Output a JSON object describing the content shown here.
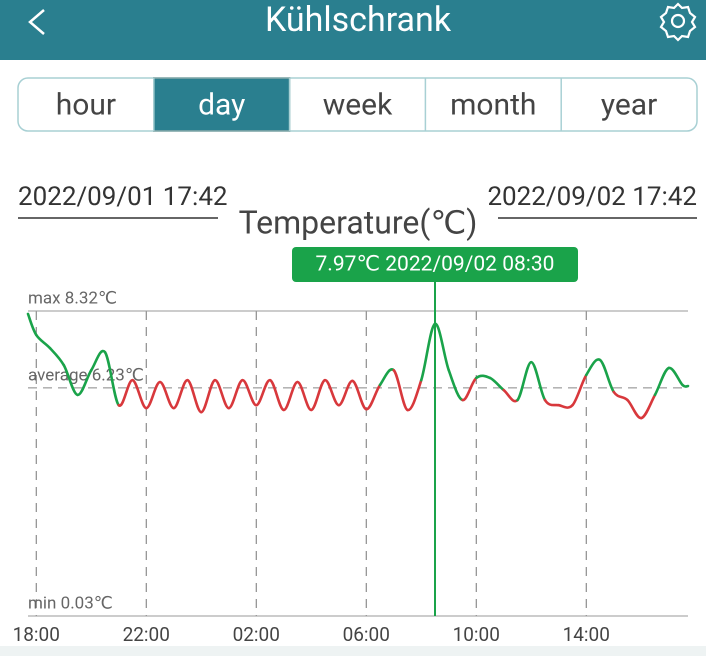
{
  "header": {
    "title": "Kühlschrank"
  },
  "tabs": {
    "items": [
      "hour",
      "day",
      "week",
      "month",
      "year"
    ],
    "selected": "day"
  },
  "chart_data": {
    "type": "line",
    "title": "Temperature(℃)",
    "xlim": [
      "2022/09/01 17:42",
      "2022/09/02 17:42"
    ],
    "xticks": [
      {
        "value": "2022/09/01 18:00",
        "label": "18:00"
      },
      {
        "value": "2022/09/01 22:00",
        "label": "22:00"
      },
      {
        "value": "2022/09/02 02:00",
        "label": "02:00"
      },
      {
        "value": "2022/09/02 06:00",
        "label": "06:00"
      },
      {
        "value": "2022/09/02 10:00",
        "label": "10:00"
      },
      {
        "value": "2022/09/02 14:00",
        "label": "14:00"
      }
    ],
    "ylim": [
      0.03,
      8.32
    ],
    "reference_lines": [
      {
        "label": "max 8.32℃",
        "value": 8.32
      },
      {
        "label": "average 6.23℃",
        "value": 6.23
      },
      {
        "label": "min 0.03℃",
        "value": 0.03
      }
    ],
    "color": "#1aa34a",
    "below_average_color": "#d8383c",
    "tooltip": {
      "text": "7.97℃ 2022/09/02 08:30",
      "x": "2022/09/02 08:30"
    },
    "x": [
      "2022/09/01 17:42",
      "2022/09/01 18:00",
      "2022/09/01 18:30",
      "2022/09/01 19:00",
      "2022/09/01 19:30",
      "2022/09/01 20:00",
      "2022/09/01 20:30",
      "2022/09/01 21:00",
      "2022/09/01 21:30",
      "2022/09/01 22:00",
      "2022/09/01 22:30",
      "2022/09/01 23:00",
      "2022/09/01 23:30",
      "2022/09/02 00:00",
      "2022/09/02 00:30",
      "2022/09/02 01:00",
      "2022/09/02 01:30",
      "2022/09/02 02:00",
      "2022/09/02 02:30",
      "2022/09/02 03:00",
      "2022/09/02 03:30",
      "2022/09/02 04:00",
      "2022/09/02 04:30",
      "2022/09/02 05:00",
      "2022/09/02 05:30",
      "2022/09/02 06:00",
      "2022/09/02 06:30",
      "2022/09/02 07:00",
      "2022/09/02 07:30",
      "2022/09/02 08:00",
      "2022/09/02 08:30",
      "2022/09/02 09:00",
      "2022/09/02 09:30",
      "2022/09/02 10:00",
      "2022/09/02 10:30",
      "2022/09/02 11:00",
      "2022/09/02 11:30",
      "2022/09/02 12:00",
      "2022/09/02 12:30",
      "2022/09/02 13:00",
      "2022/09/02 13:30",
      "2022/09/02 14:00",
      "2022/09/02 14:30",
      "2022/09/02 15:00",
      "2022/09/02 15:30",
      "2022/09/02 16:00",
      "2022/09/02 16:30",
      "2022/09/02 17:00",
      "2022/09/02 17:30",
      "2022/09/02 17:42"
    ],
    "values": [
      8.24,
      7.67,
      7.31,
      6.85,
      6.04,
      6.71,
      7.2,
      5.76,
      6.44,
      5.68,
      6.39,
      5.68,
      6.44,
      5.57,
      6.44,
      5.68,
      6.44,
      5.76,
      6.44,
      5.63,
      6.39,
      5.63,
      6.44,
      5.76,
      6.42,
      5.65,
      6.31,
      6.71,
      5.63,
      6.44,
      7.97,
      6.71,
      5.9,
      6.5,
      6.5,
      6.17,
      5.9,
      6.93,
      5.9,
      5.76,
      5.76,
      6.58,
      6.99,
      6.12,
      5.9,
      5.41,
      6.04,
      6.77,
      6.31,
      6.28
    ]
  }
}
